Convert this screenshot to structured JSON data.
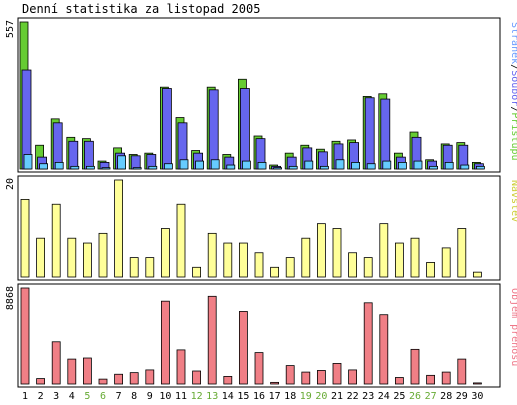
{
  "title": "Denní statistika za listopad 2005",
  "colors": {
    "background": "#ffffff",
    "panel_border": "#000000",
    "hits_green": "#66cc33",
    "files_blue": "#6666ee",
    "pages_cyan": "#66ccff",
    "visits_yellow": "#ffff99",
    "kbytes_red": "#f07f86",
    "weekend_label_green": "#66aa33",
    "weekday_label": "#000000"
  },
  "chart_data": [
    {
      "type": "bar",
      "panel": "hits-files-pages",
      "axis_max_label": "557",
      "ylim": [
        0,
        557
      ],
      "side_label": {
        "parts": [
          {
            "text": "Stránek",
            "color": "#6699ff"
          },
          {
            "text": "/",
            "color": "#000000"
          },
          {
            "text": "Soubor",
            "color": "#6666ee"
          },
          {
            "text": "/",
            "color": "#000000"
          },
          {
            "text": "Přístupů",
            "color": "#66cc33"
          }
        ]
      },
      "categories": [
        "1",
        "2",
        "3",
        "4",
        "5",
        "6",
        "7",
        "8",
        "9",
        "10",
        "11",
        "12",
        "13",
        "14",
        "15",
        "16",
        "17",
        "18",
        "19",
        "20",
        "21",
        "22",
        "23",
        "24",
        "25",
        "26",
        "27",
        "28",
        "29",
        "30"
      ],
      "series": [
        {
          "name": "Přístupů",
          "color": "#66cc33",
          "values": [
            557,
            90,
            190,
            120,
            115,
            30,
            80,
            55,
            60,
            310,
            195,
            70,
            310,
            55,
            340,
            125,
            15,
            60,
            90,
            75,
            105,
            110,
            275,
            285,
            60,
            140,
            35,
            95,
            100,
            25
          ]
        },
        {
          "name": "Soubor",
          "color": "#6666ee",
          "values": [
            375,
            45,
            175,
            105,
            105,
            25,
            60,
            50,
            55,
            305,
            175,
            60,
            300,
            45,
            305,
            115,
            10,
            45,
            80,
            65,
            95,
            100,
            270,
            265,
            45,
            120,
            30,
            90,
            90,
            20
          ]
        },
        {
          "name": "Stránek",
          "color": "#66ccff",
          "values": [
            55,
            20,
            25,
            10,
            10,
            5,
            50,
            5,
            10,
            20,
            35,
            30,
            35,
            15,
            30,
            25,
            5,
            10,
            30,
            10,
            35,
            25,
            20,
            30,
            25,
            30,
            10,
            25,
            15,
            10
          ]
        }
      ]
    },
    {
      "type": "bar",
      "panel": "visits",
      "axis_max_label": "20",
      "ylim": [
        0,
        20
      ],
      "side_label": {
        "parts": [
          {
            "text": "Návštěv",
            "color": "#cccc33"
          }
        ]
      },
      "categories": [
        "1",
        "2",
        "3",
        "4",
        "5",
        "6",
        "7",
        "8",
        "9",
        "10",
        "11",
        "12",
        "13",
        "14",
        "15",
        "16",
        "17",
        "18",
        "19",
        "20",
        "21",
        "22",
        "23",
        "24",
        "25",
        "26",
        "27",
        "28",
        "29",
        "30"
      ],
      "series": [
        {
          "name": "Návštěv",
          "color": "#ffff99",
          "values": [
            16,
            8,
            15,
            8,
            7,
            9,
            20,
            4,
            4,
            10,
            15,
            2,
            9,
            7,
            7,
            5,
            2,
            4,
            8,
            11,
            10,
            5,
            4,
            11,
            7,
            8,
            3,
            6,
            10,
            1
          ]
        }
      ]
    },
    {
      "type": "bar",
      "panel": "traffic",
      "axis_max_label": "8868",
      "ylim": [
        0,
        8868
      ],
      "side_label": {
        "parts": [
          {
            "text": "Objem přenosu",
            "color": "#ee7788"
          }
        ]
      },
      "categories": [
        "1",
        "2",
        "3",
        "4",
        "5",
        "6",
        "7",
        "8",
        "9",
        "10",
        "11",
        "12",
        "13",
        "14",
        "15",
        "16",
        "17",
        "18",
        "19",
        "20",
        "21",
        "22",
        "23",
        "24",
        "25",
        "26",
        "27",
        "28",
        "29",
        "30"
      ],
      "series": [
        {
          "name": "Objem přenosu",
          "color": "#f07f86",
          "values": [
            8868,
            500,
            3900,
            2300,
            2400,
            450,
            900,
            1050,
            1300,
            7650,
            3150,
            1200,
            8100,
            700,
            6700,
            2900,
            150,
            1700,
            1100,
            1250,
            1900,
            1300,
            7500,
            6400,
            600,
            3200,
            800,
            1100,
            2300,
            100
          ]
        }
      ]
    }
  ],
  "x_axis": {
    "labels": [
      "1",
      "2",
      "3",
      "4",
      "5",
      "6",
      "7",
      "8",
      "9",
      "10",
      "11",
      "12",
      "13",
      "14",
      "15",
      "16",
      "17",
      "18",
      "19",
      "20",
      "21",
      "22",
      "23",
      "24",
      "25",
      "26",
      "27",
      "28",
      "29",
      "30"
    ],
    "weekend_days": [
      "5",
      "6",
      "12",
      "13",
      "19",
      "20",
      "26",
      "27"
    ]
  }
}
